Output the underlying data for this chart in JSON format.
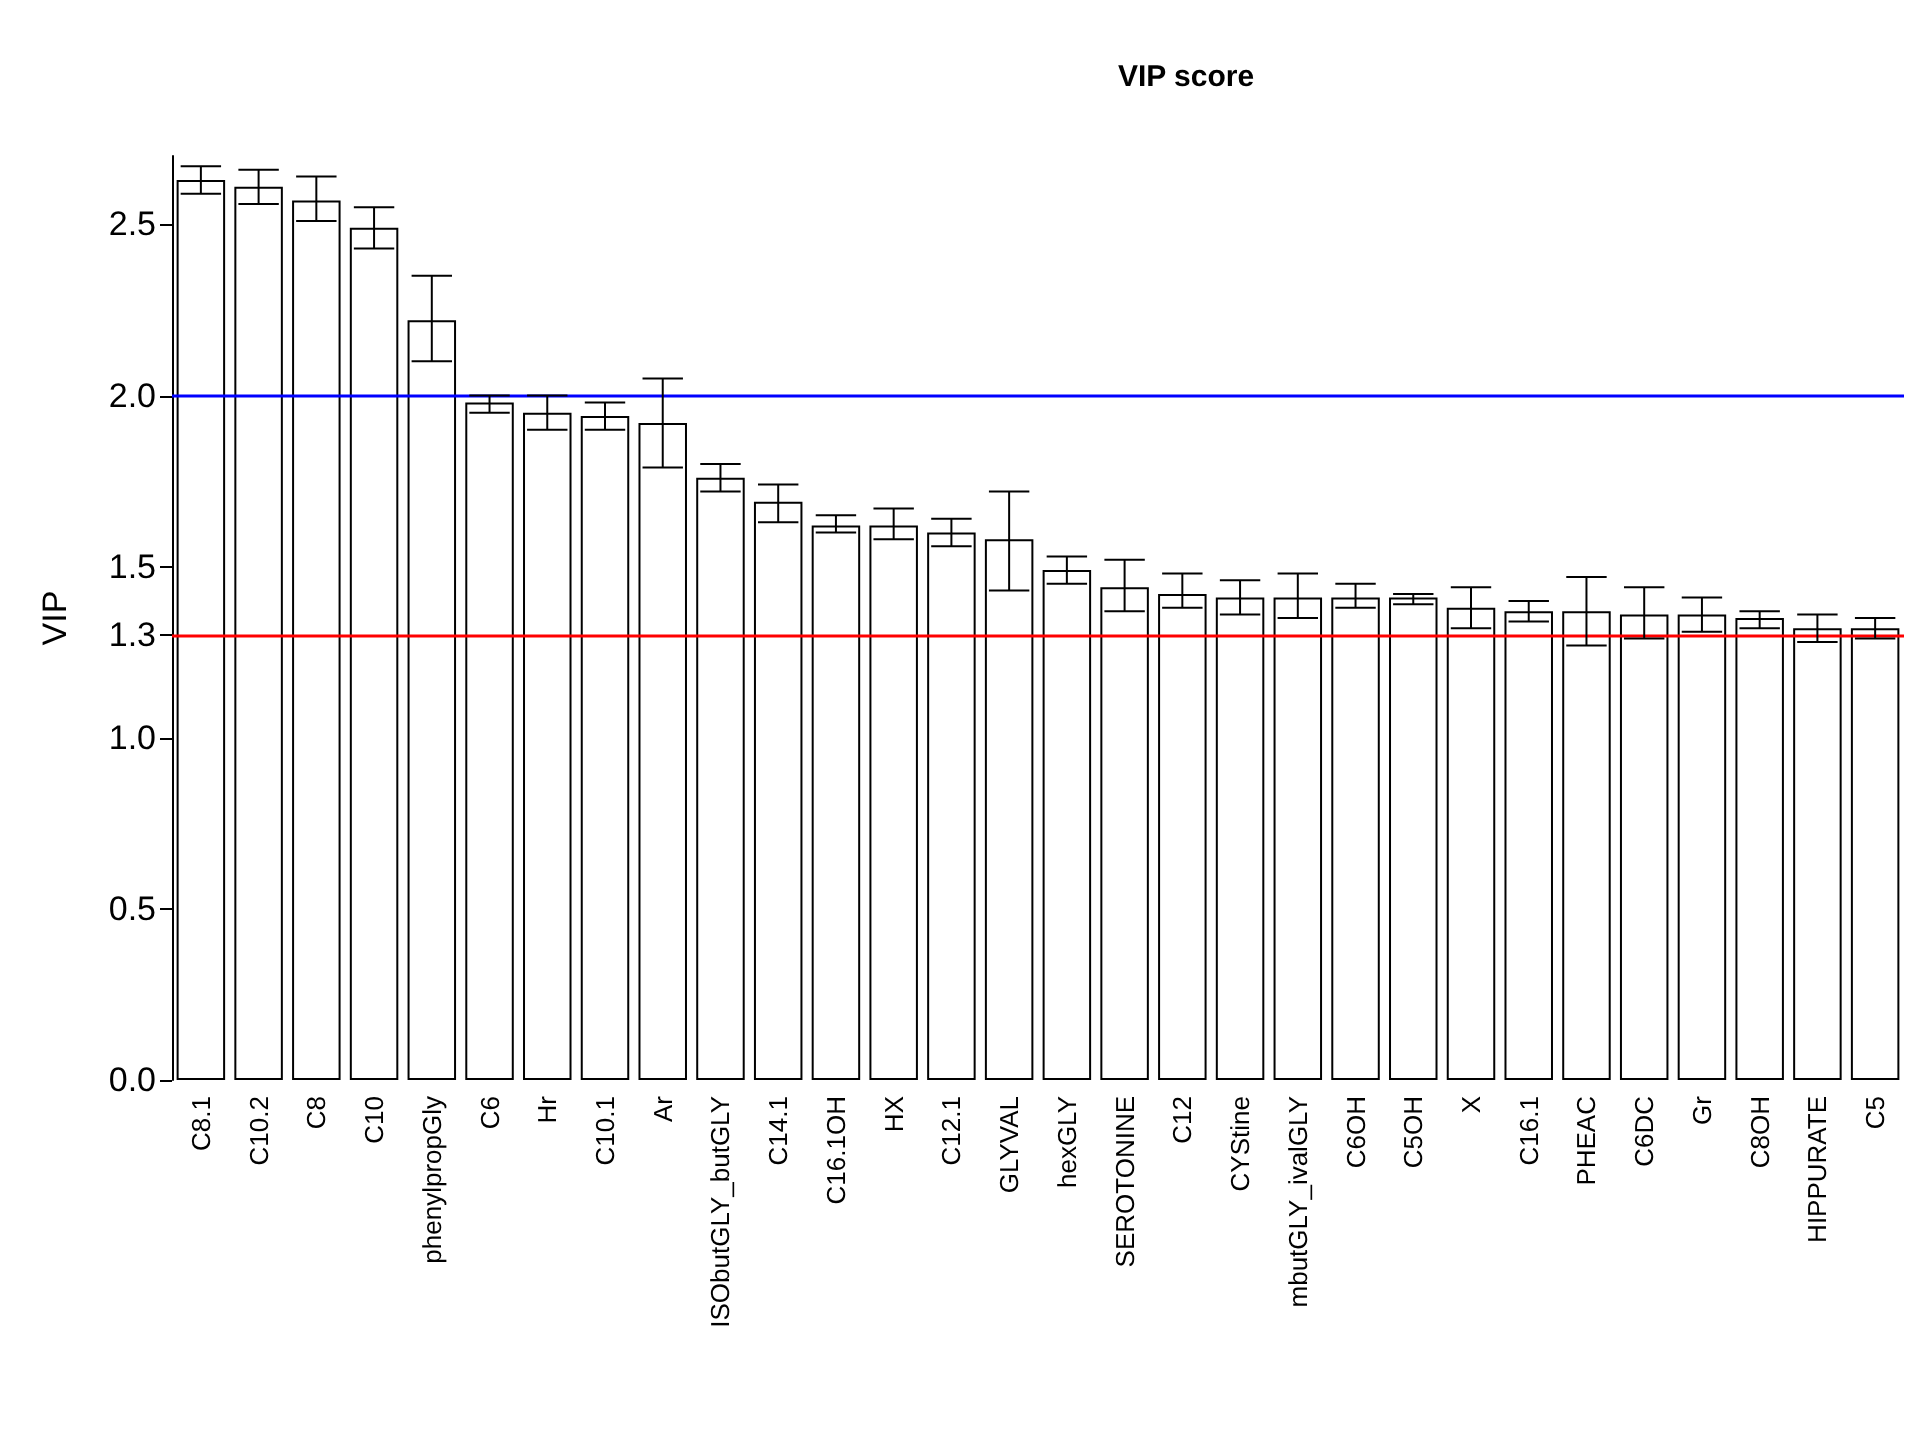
{
  "chart_data": {
    "type": "bar",
    "title": "VIP score",
    "ylabel": "VIP",
    "categories": [
      "C8.1",
      "C10.2",
      "C8",
      "C10",
      "phenylpropGly",
      "C6",
      "Hr",
      "C10.1",
      "Ar",
      "ISObutGLY_butGLY",
      "C14.1",
      "C16.1OH",
      "HX",
      "C12.1",
      "GLYVAL",
      "hexGLY",
      "SEROTONINE",
      "C12",
      "CYStine",
      "mbutGLY_ivalGLY",
      "C6OH",
      "C5OH",
      "X",
      "C16.1",
      "PHEAC",
      "C6DC",
      "Gr",
      "C8OH",
      "HIPPURATE",
      "C5"
    ],
    "values": [
      2.63,
      2.61,
      2.57,
      2.49,
      2.22,
      1.98,
      1.95,
      1.94,
      1.92,
      1.76,
      1.69,
      1.62,
      1.62,
      1.6,
      1.58,
      1.49,
      1.44,
      1.42,
      1.41,
      1.41,
      1.41,
      1.41,
      1.38,
      1.37,
      1.37,
      1.36,
      1.36,
      1.35,
      1.32,
      1.32
    ],
    "errors": [
      [
        2.59,
        2.67
      ],
      [
        2.56,
        2.66
      ],
      [
        2.51,
        2.64
      ],
      [
        2.43,
        2.55
      ],
      [
        2.1,
        2.35
      ],
      [
        1.95,
        2.0
      ],
      [
        1.9,
        2.0
      ],
      [
        1.9,
        1.98
      ],
      [
        1.79,
        2.05
      ],
      [
        1.72,
        1.8
      ],
      [
        1.63,
        1.74
      ],
      [
        1.6,
        1.65
      ],
      [
        1.58,
        1.67
      ],
      [
        1.56,
        1.64
      ],
      [
        1.43,
        1.72
      ],
      [
        1.45,
        1.53
      ],
      [
        1.37,
        1.52
      ],
      [
        1.38,
        1.48
      ],
      [
        1.36,
        1.46
      ],
      [
        1.35,
        1.48
      ],
      [
        1.38,
        1.45
      ],
      [
        1.39,
        1.42
      ],
      [
        1.32,
        1.44
      ],
      [
        1.34,
        1.4
      ],
      [
        1.27,
        1.47
      ],
      [
        1.29,
        1.44
      ],
      [
        1.31,
        1.41
      ],
      [
        1.32,
        1.37
      ],
      [
        1.28,
        1.36
      ],
      [
        1.29,
        1.35
      ]
    ],
    "color": "#ffffff",
    "ylim": [
      0,
      2.7
    ],
    "yticks": [
      {
        "value": 0,
        "label": "0.0"
      },
      0.5,
      {
        "value": 1,
        "label": "1.0"
      },
      1.3,
      1.5,
      {
        "value": 2,
        "label": "2.0"
      },
      2.5
    ],
    "ref_lines": [
      {
        "axis": "y",
        "value": 2,
        "label": null,
        "color": "#0000ff"
      },
      {
        "axis": "y",
        "value": 1.3,
        "label": null,
        "color": "#ff0000"
      }
    ],
    "grid": false
  }
}
